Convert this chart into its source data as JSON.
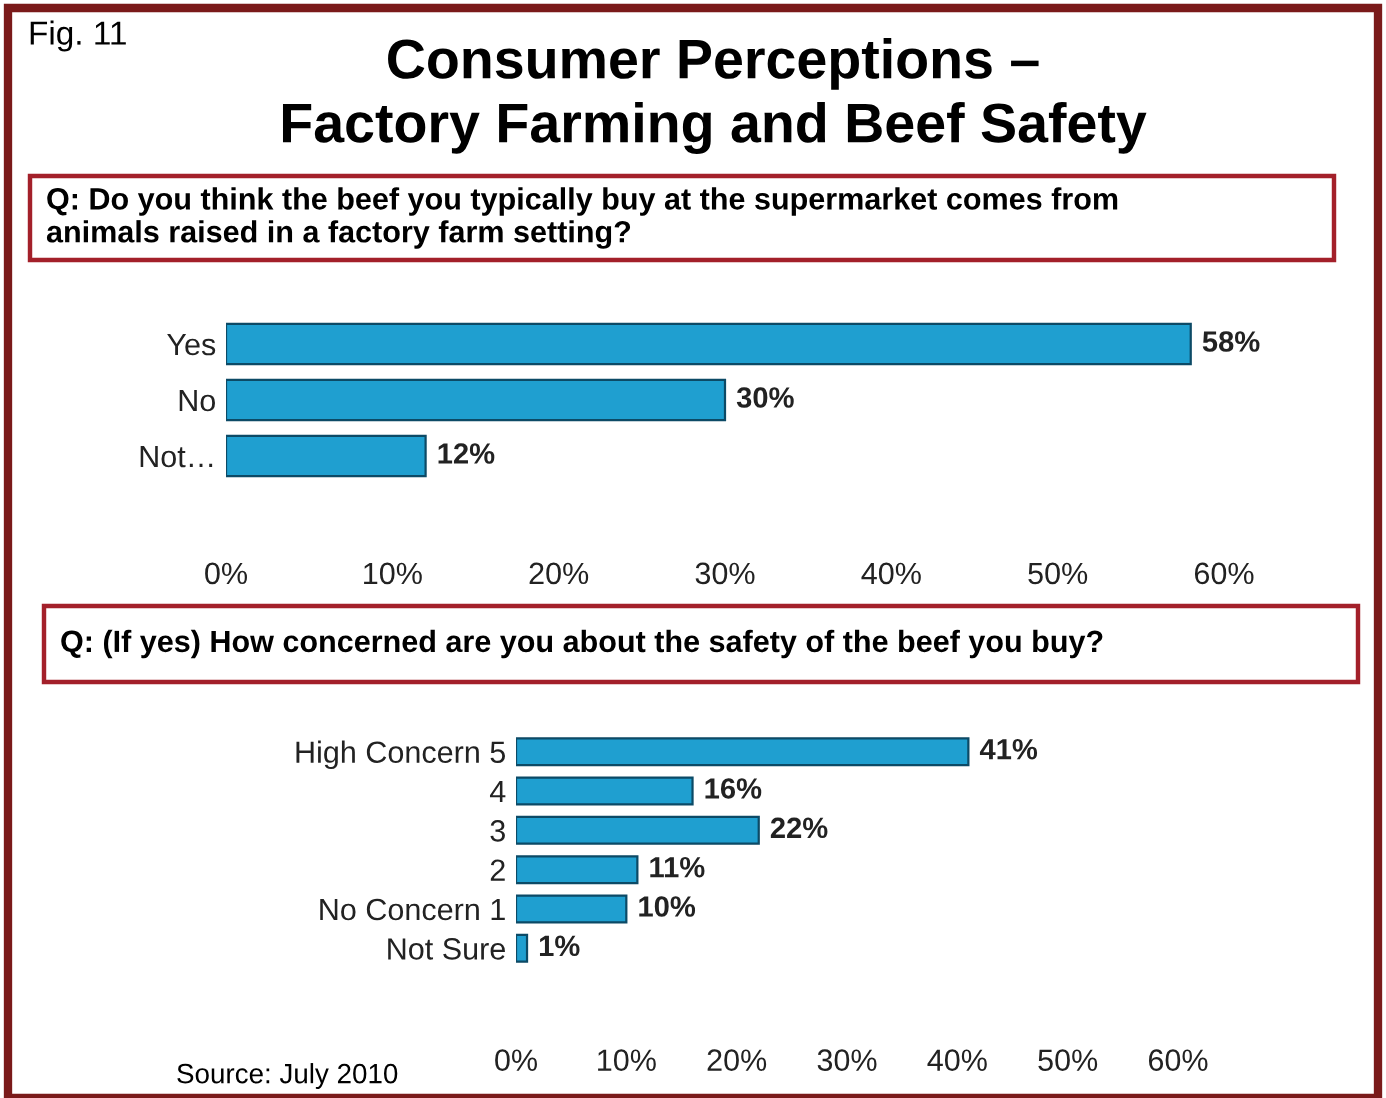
{
  "chart_data": [
    {
      "type": "bar",
      "orientation": "horizontal",
      "title": "Consumer Perceptions –\nFactory Farming and Beef Safety",
      "subtitle": "Q: Do you think the beef you typically buy at the supermarket comes from\nanimals raised in a factory farm setting?",
      "annotations": [
        "Fig. 11"
      ],
      "categories": [
        "Yes",
        "No",
        "Not…"
      ],
      "values": [
        58,
        30,
        12
      ],
      "value_labels": [
        "58%",
        "30%",
        "12%"
      ],
      "color": "#1f9fd0",
      "xlim": [
        0,
        60
      ],
      "xticks": [
        {
          "value": 0,
          "label": "0%"
        },
        {
          "value": 10,
          "label": "10%"
        },
        {
          "value": 20,
          "label": "20%"
        },
        {
          "value": 30,
          "label": "30%"
        },
        {
          "value": 40,
          "label": "40%"
        },
        {
          "value": 50,
          "label": "50%"
        },
        {
          "value": 60,
          "label": "60%"
        }
      ],
      "grid": false,
      "legend": false
    },
    {
      "type": "bar",
      "orientation": "horizontal",
      "subtitle": "Q: (If yes) How concerned are you about the safety of the beef you buy?",
      "annotations": [
        "Source: July 2010"
      ],
      "categories": [
        "High Concern 5",
        "4",
        "3",
        "2",
        "No Concern 1",
        "Not Sure"
      ],
      "values": [
        41,
        16,
        22,
        11,
        10,
        1
      ],
      "value_labels": [
        "41%",
        "16%",
        "22%",
        "11%",
        "10%",
        "1%"
      ],
      "color": "#1f9fd0",
      "xlim": [
        0,
        60
      ],
      "xticks": [
        {
          "value": 0,
          "label": "0%"
        },
        {
          "value": 10,
          "label": "10%"
        },
        {
          "value": 20,
          "label": "20%"
        },
        {
          "value": 30,
          "label": "30%"
        },
        {
          "value": 40,
          "label": "40%"
        },
        {
          "value": 50,
          "label": "50%"
        },
        {
          "value": 60,
          "label": "60%"
        }
      ],
      "grid": false,
      "legend": false
    }
  ]
}
